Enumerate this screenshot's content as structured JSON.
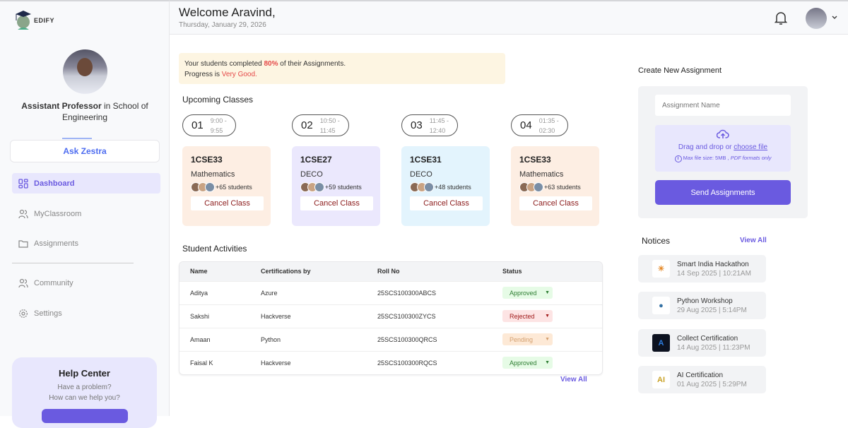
{
  "brand": {
    "name": "EDIFY"
  },
  "profile": {
    "role": "Assistant Professor",
    "dept_prefix": "in",
    "dept": "School of Engineering"
  },
  "ask_label": "Ask Zestra",
  "nav": [
    {
      "label": "Dashboard",
      "icon": "dashboard-icon",
      "active": true
    },
    {
      "label": "MyClassroom",
      "icon": "users-icon"
    },
    {
      "label": "Assignments",
      "icon": "folder-icon"
    },
    {
      "label": "Community",
      "icon": "users-icon"
    },
    {
      "label": "Settings",
      "icon": "gear-icon"
    }
  ],
  "help": {
    "title": "Help Center",
    "line1": "Have a problem?",
    "line2": "How can we help you?"
  },
  "header": {
    "title": "Welcome Aravind,",
    "date": "Thursday, January 29, 2026"
  },
  "progress": {
    "pre": "Your students completed ",
    "percent": "80%",
    "post": " of their Assignments.",
    "line2_pre": "Progress is ",
    "rating": "Very Good."
  },
  "upcoming": {
    "title": "Upcoming Classes",
    "classes": [
      {
        "num": "01",
        "start": "9:00 -",
        "end": "9:55",
        "code": "1CSE33",
        "subject": "Mathematics",
        "students": "+65 students",
        "cancel": "Cancel Class",
        "color": "#fdeee3"
      },
      {
        "num": "02",
        "start": "10:50 -",
        "end": "11:45",
        "code": "1CSE27",
        "subject": "DECO",
        "students": "+59 students",
        "cancel": "Cancel Class",
        "color": "#ebe8fd"
      },
      {
        "num": "03",
        "start": "11:45 -",
        "end": "12:40",
        "code": "1CSE31",
        "subject": "DECO",
        "students": "+48 students",
        "cancel": "Cancel Class",
        "color": "#e3f4fd"
      },
      {
        "num": "04",
        "start": "01:35 -",
        "end": "02:30",
        "code": "1CSE33",
        "subject": "Mathematics",
        "students": "+63 students",
        "cancel": "Cancel Class",
        "color": "#fdeee3"
      }
    ]
  },
  "activities": {
    "title": "Student Activities",
    "columns": [
      "Name",
      "Certifications by",
      "Roll No",
      "Status"
    ],
    "rows": [
      [
        "Aditya",
        "Azure",
        "25SCS100300ABCS",
        "Approved"
      ],
      [
        "Sakshi",
        "Hackverse",
        "25SCS100300ZYCS",
        "Rejected"
      ],
      [
        "Amaan",
        "Python",
        "25SCS100300QRCS",
        "Pending"
      ],
      [
        "Faisal K",
        "Hackverse",
        "25SCS100300RQCS",
        "Approved"
      ]
    ],
    "view_all": "View All"
  },
  "status_colors": {
    "Approved": [
      "#e6fbe6",
      "#2e7d32"
    ],
    "Rejected": [
      "#fde4e4",
      "#a11c1c"
    ],
    "Pending": [
      "#fde9d6",
      "#d4a070"
    ]
  },
  "create": {
    "title": "Create New Assignment",
    "placeholder": "Assignment Name",
    "drop_text": "Drag and drop or ",
    "choose": "choose file",
    "limit": "Max file size: 5MB , ",
    "formats": "PDF formats only",
    "send": "Send Assignments"
  },
  "notices": {
    "title": "Notices",
    "view_all": "View All",
    "items": [
      {
        "title": "Smart India Hackathon",
        "date": "14 Sep 2025 | 10:21AM",
        "icon": "bulb-brain-icon"
      },
      {
        "title": "Python Workshop",
        "date": "29 Aug 2025 | 5:14PM",
        "icon": "python-icon"
      },
      {
        "title": "Collect Certification",
        "date": "14 Aug 2025 | 11:23PM",
        "icon": "azure-icon"
      },
      {
        "title": "AI Certification",
        "date": "01 Aug 2025 | 5:29PM",
        "icon": "ai-icon"
      }
    ]
  },
  "accent": "#6a5ae0"
}
